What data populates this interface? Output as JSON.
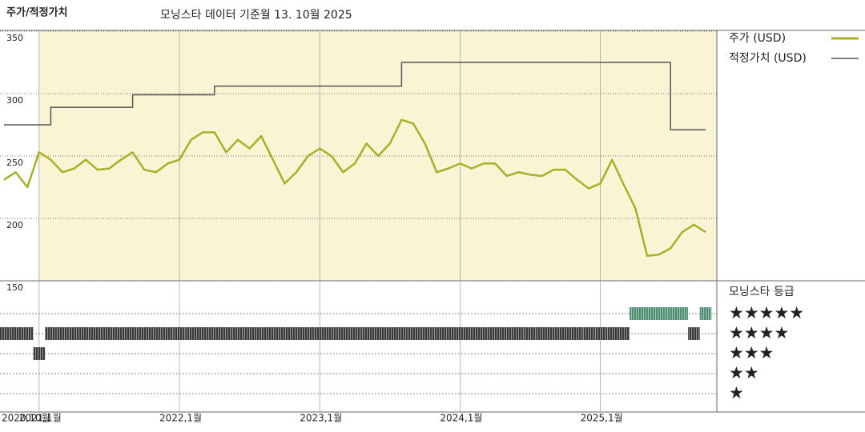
{
  "chart_data": {
    "type": "line",
    "title": "주가/적정가치",
    "subtitle": "모닝스타 데이터 기준월 13. 10월 2025",
    "x": [
      "2020-10",
      "2020-11",
      "2020-12",
      "2021-01",
      "2021-02",
      "2021-03",
      "2021-04",
      "2021-05",
      "2021-06",
      "2021-07",
      "2021-08",
      "2021-09",
      "2021-10",
      "2021-11",
      "2021-12",
      "2022-01",
      "2022-02",
      "2022-03",
      "2022-04",
      "2022-05",
      "2022-06",
      "2022-07",
      "2022-08",
      "2022-09",
      "2022-10",
      "2022-11",
      "2022-12",
      "2023-01",
      "2023-02",
      "2023-03",
      "2023-04",
      "2023-05",
      "2023-06",
      "2023-07",
      "2023-08",
      "2023-09",
      "2023-10",
      "2023-11",
      "2023-12",
      "2024-01",
      "2024-02",
      "2024-03",
      "2024-04",
      "2024-05",
      "2024-06",
      "2024-07",
      "2024-08",
      "2024-09",
      "2024-10",
      "2024-11",
      "2024-12",
      "2025-01",
      "2025-02",
      "2025-03",
      "2025-04",
      "2025-05",
      "2025-06",
      "2025-07",
      "2025-08",
      "2025-09",
      "2025-10"
    ],
    "series": [
      {
        "name": "주가 (USD)",
        "color": "#a8b02a",
        "values": [
          231,
          237,
          225,
          253,
          247,
          237,
          240,
          247,
          239,
          240,
          247,
          253,
          239,
          237,
          244,
          247,
          263,
          269,
          269,
          253,
          263,
          256,
          266,
          247,
          228,
          237,
          250,
          256,
          250,
          237,
          244,
          260,
          250,
          260,
          279,
          276,
          260,
          237,
          240,
          244,
          240,
          244,
          244,
          234,
          237,
          235,
          234,
          239,
          239,
          231,
          224,
          228,
          247,
          227,
          208,
          170,
          171,
          176,
          189,
          195,
          189
        ]
      },
      {
        "name": "적정가치 (USD)",
        "color": "#555555",
        "step": true,
        "values": [
          275,
          275,
          275,
          275,
          289,
          289,
          289,
          289,
          289,
          289,
          289,
          299,
          299,
          299,
          299,
          299,
          299,
          299,
          306,
          306,
          306,
          306,
          306,
          306,
          306,
          306,
          306,
          306,
          306,
          306,
          306,
          306,
          306,
          306,
          325,
          325,
          325,
          325,
          325,
          325,
          325,
          325,
          325,
          325,
          325,
          325,
          325,
          325,
          325,
          325,
          325,
          325,
          325,
          325,
          325,
          325,
          325,
          271,
          271,
          271,
          271
        ]
      }
    ],
    "ylim": [
      150,
      350
    ],
    "yticks": [
      350,
      300,
      250,
      200,
      150
    ],
    "xticks": [
      {
        "value": "2020-10",
        "label": "2020,10월"
      },
      {
        "value": "2021-01",
        "label": "2021,1월"
      },
      {
        "value": "2022-01",
        "label": "2022,1월"
      },
      {
        "value": "2023-01",
        "label": "2023,1월"
      },
      {
        "value": "2024-01",
        "label": "2024,1월"
      },
      {
        "value": "2025-01",
        "label": "2025,1월"
      }
    ],
    "background": "#f8f4d4",
    "grid": true,
    "rating_title": "모닝스타 등급",
    "rating_levels": [
      {
        "value": 5,
        "label": "★★★★★"
      },
      {
        "value": 4,
        "label": "★★★★"
      },
      {
        "value": 3,
        "label": "★★★"
      },
      {
        "value": 2,
        "label": "★★"
      },
      {
        "value": 1,
        "label": "★"
      }
    ],
    "rating_colors": {
      "5": "#4e8f72",
      "4": "#3a3a3a",
      "3": "#3a3a3a",
      "2": "#3a3a3a",
      "1": "#3a3a3a"
    },
    "ratings": [
      4,
      4,
      4,
      3,
      4,
      4,
      4,
      4,
      4,
      4,
      4,
      4,
      4,
      4,
      4,
      4,
      4,
      4,
      4,
      4,
      4,
      4,
      4,
      4,
      4,
      4,
      4,
      4,
      4,
      4,
      4,
      4,
      4,
      4,
      4,
      4,
      4,
      4,
      4,
      4,
      4,
      4,
      4,
      4,
      4,
      4,
      4,
      4,
      4,
      4,
      4,
      4,
      4,
      4,
      5,
      5,
      5,
      5,
      5,
      4,
      5
    ]
  }
}
